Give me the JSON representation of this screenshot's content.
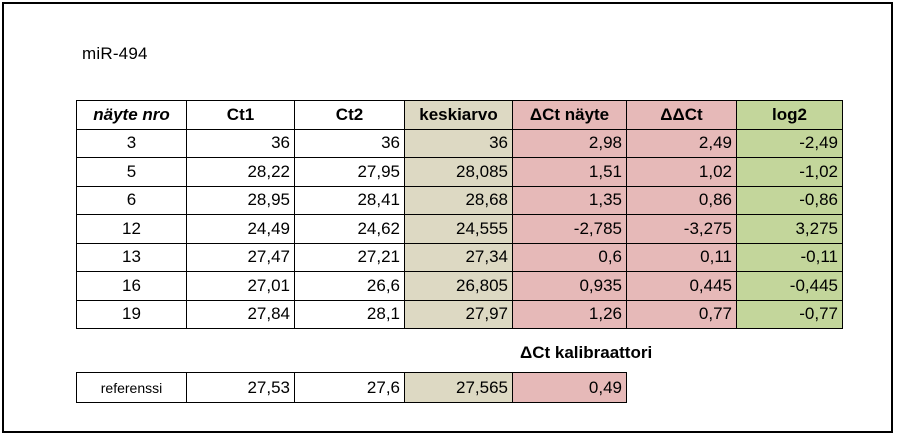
{
  "title": "miR-494",
  "headers": [
    "näyte nro",
    "Ct1",
    "Ct2",
    "keskiarvo",
    "ΔCt näyte",
    "ΔΔCt",
    "log2"
  ],
  "rows": [
    [
      "3",
      "36",
      "36",
      "36",
      "2,98",
      "2,49",
      "-2,49"
    ],
    [
      "5",
      "28,22",
      "27,95",
      "28,085",
      "1,51",
      "1,02",
      "-1,02"
    ],
    [
      "6",
      "28,95",
      "28,41",
      "28,68",
      "1,35",
      "0,86",
      "-0,86"
    ],
    [
      "12",
      "24,49",
      "24,62",
      "24,555",
      "-2,785",
      "-3,275",
      "3,275"
    ],
    [
      "13",
      "27,47",
      "27,21",
      "27,34",
      "0,6",
      "0,11",
      "-0,11"
    ],
    [
      "16",
      "27,01",
      "26,6",
      "26,805",
      "0,935",
      "0,445",
      "-0,445"
    ],
    [
      "19",
      "27,84",
      "28,1",
      "27,97",
      "1,26",
      "0,77",
      "-0,77"
    ]
  ],
  "calibrator_label": "ΔCt kalibraattori",
  "reference": {
    "label": "referenssi",
    "ct1": "27,53",
    "ct2": "27,6",
    "avg": "27,565",
    "dct": "0,49"
  },
  "colors": {
    "avg": "#ddd9c3",
    "dct": "#e6b9b8",
    "ddct": "#e6b9b8",
    "log2": "#c3d69b"
  }
}
